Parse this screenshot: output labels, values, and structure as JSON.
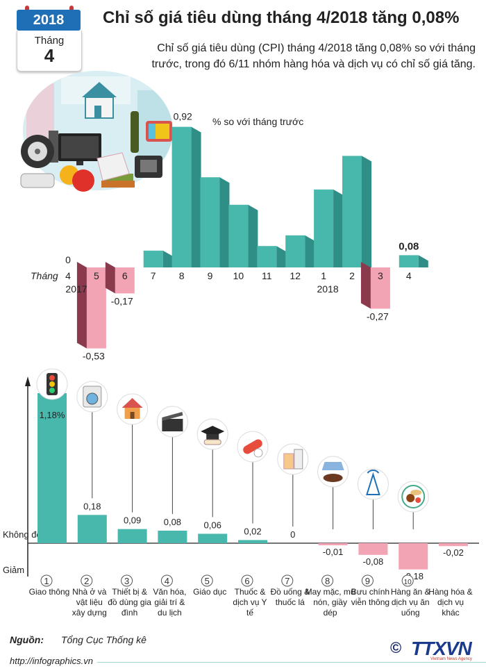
{
  "header": {
    "year_badge": "2018",
    "month_label": "Tháng",
    "month_value": "4",
    "title": "Chỉ số giá tiêu dùng tháng 4/2018 tăng 0,08%",
    "intro": "Chỉ số giá tiêu dùng (CPI) tháng 4/2018 tăng 0,08% so với tháng trước, trong đó 6/11 nhóm hàng hóa và dịch vụ có chỉ số giá tăng."
  },
  "colors": {
    "teal": "#49b8ac",
    "teal_dark": "#2f8f86",
    "pink": "#f3a4b4",
    "pink_dark": "#b5526a",
    "maroon": "#8b3a4e"
  },
  "chart_data": [
    {
      "type": "bar",
      "unit_note": "% so với tháng trước",
      "axis_label": "Tháng",
      "categories": [
        "4",
        "5",
        "6",
        "7",
        "8",
        "9",
        "10",
        "11",
        "12",
        "1",
        "2",
        "3",
        "4"
      ],
      "year_labels": {
        "0": "2017",
        "9": "2018"
      },
      "values": [
        0,
        -0.53,
        -0.17,
        0.11,
        0.92,
        0.59,
        0.41,
        0.14,
        0.21,
        0.51,
        0.73,
        -0.27,
        0.08
      ],
      "data_labels": {
        "0": "0",
        "1": "-0,53",
        "2": "-0,17",
        "4": "0,92",
        "11": "-0,27",
        "12": "0,08"
      },
      "ylim": [
        -0.55,
        1.0
      ]
    },
    {
      "type": "bar",
      "axis_labels": {
        "zero": "Không đổi",
        "down": "Giảm"
      },
      "categories": [
        {
          "num": "1",
          "name": "Giao thông",
          "icon": "traffic-light-icon"
        },
        {
          "num": "2",
          "name": "Nhà ở và vật liệu xây dựng",
          "icon": "washing-machine-icon"
        },
        {
          "num": "3",
          "name": "Thiết bị & đồ dùng gia đình",
          "icon": "house-icon"
        },
        {
          "num": "4",
          "name": "Văn hóa, giải trí & du lịch",
          "icon": "clapperboard-icon"
        },
        {
          "num": "5",
          "name": "Giáo dục",
          "icon": "graduation-cap-icon"
        },
        {
          "num": "6",
          "name": "Thuốc & dịch vụ Y tế",
          "icon": "pill-icon"
        },
        {
          "num": "7",
          "name": "Đồ uống & thuốc lá",
          "icon": "drinks-icon"
        },
        {
          "num": "8",
          "name": "May mặc, mũ nón, giầy dép",
          "icon": "shirt-shoe-icon"
        },
        {
          "num": "9",
          "name": "Bưu chính viễn thông",
          "icon": "antenna-icon"
        },
        {
          "num": "10",
          "name": "Hàng ăn & dịch vụ ăn uống",
          "icon": "food-plate-icon"
        },
        {
          "num": "",
          "name": "Hàng hóa & dịch vụ khác",
          "icon": ""
        }
      ],
      "values": [
        1.18,
        0.18,
        0.09,
        0.08,
        0.06,
        0.02,
        0,
        -0.01,
        -0.08,
        -0.18,
        -0.02
      ],
      "value_labels": [
        "1,18%",
        "0,18",
        "0,09",
        "0,08",
        "0,06",
        "0,02",
        "0",
        "-0,01",
        "-0,08",
        "-0,18",
        "-0,02"
      ]
    }
  ],
  "footer": {
    "source_label": "Nguồn:",
    "source_value": "Tổng Cục Thống kê",
    "url": "http://infographics.vn",
    "copyright": "©",
    "logo": "TTXVN",
    "logo_sub": "Vietnam News Agency"
  }
}
